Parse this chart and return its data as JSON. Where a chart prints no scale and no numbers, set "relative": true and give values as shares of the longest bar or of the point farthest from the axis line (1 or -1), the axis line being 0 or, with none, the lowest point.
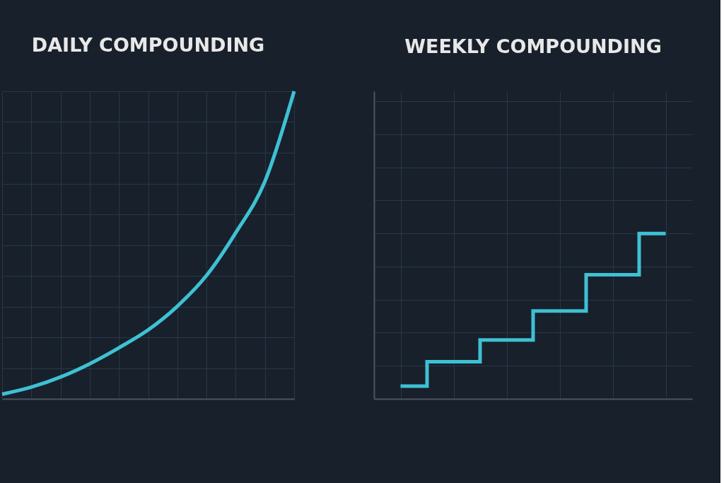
{
  "chart_data": [
    {
      "type": "line",
      "title": "DAILY COMPOUNDING",
      "relative": true,
      "grid": true,
      "tick_labels": false,
      "categories": [
        null,
        null,
        null,
        null,
        null,
        null,
        null,
        null,
        null,
        null,
        null
      ],
      "series": [
        {
          "color": "#3ec1d3",
          "values": [
            0.015,
            0.038,
            0.071,
            0.114,
            0.166,
            0.224,
            0.301,
            0.401,
            0.54,
            0.707,
            1.0
          ]
        }
      ]
    },
    {
      "type": "step",
      "title": "WEEKLY COMPOUNDING",
      "relative": true,
      "grid": true,
      "tick_labels": false,
      "categories": [
        null,
        null,
        null,
        null,
        null,
        null
      ],
      "series": [
        {
          "color": "#3ec1d3",
          "values": [
            0.077,
            0.224,
            0.356,
            0.531,
            0.75,
            1.0
          ]
        }
      ]
    }
  ]
}
